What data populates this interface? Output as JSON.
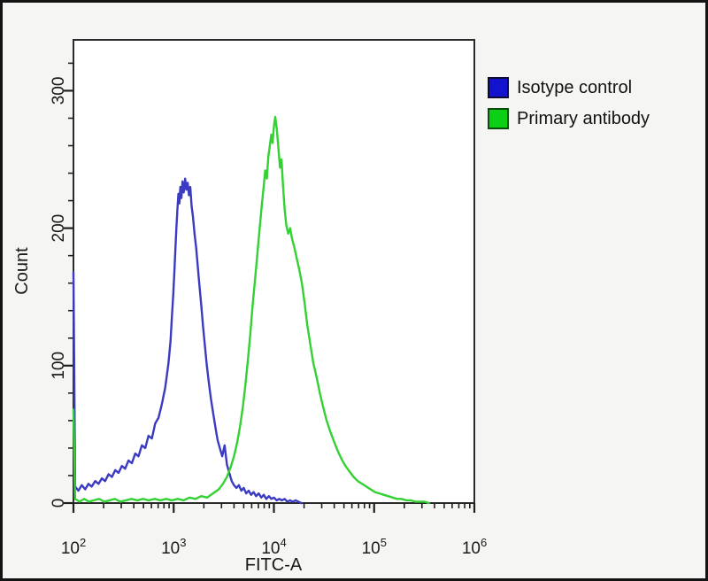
{
  "figure": {
    "background": "#f5f5f3",
    "frame_color": "#141414"
  },
  "chart_data": {
    "type": "line",
    "subtype": "flow-cytometry-histogram-overlay",
    "title": "",
    "xlabel": "FITC-A",
    "ylabel": "Count",
    "x_scale": "log",
    "xlim": [
      100,
      1000000
    ],
    "x_log_range": [
      2,
      6
    ],
    "ylim": [
      0,
      337
    ],
    "grid": false,
    "axis_color": "#1f1f1f",
    "plot_background": "#ffffff",
    "legend_position": "top-right-outside",
    "x_ticks": [
      {
        "mantissa": "10",
        "exp": "2",
        "value": 100
      },
      {
        "mantissa": "10",
        "exp": "3",
        "value": 1000
      },
      {
        "mantissa": "10",
        "exp": "4",
        "value": 10000
      },
      {
        "mantissa": "10",
        "exp": "5",
        "value": 100000
      },
      {
        "mantissa": "10",
        "exp": "6",
        "value": 1000000
      }
    ],
    "y_ticks": [
      0,
      100,
      200,
      300
    ],
    "y_minor_step": 20,
    "series": [
      {
        "name": "Isotype control",
        "color": "#3a3ac2",
        "legend_color": "#1313cf",
        "legend_border": "#0b0b33",
        "points": [
          [
            100,
            168
          ],
          [
            104,
            12
          ],
          [
            112,
            9
          ],
          [
            121,
            13
          ],
          [
            131,
            10
          ],
          [
            141,
            14
          ],
          [
            152,
            12
          ],
          [
            165,
            16
          ],
          [
            178,
            14
          ],
          [
            192,
            18
          ],
          [
            207,
            16
          ],
          [
            224,
            21
          ],
          [
            242,
            19
          ],
          [
            261,
            24
          ],
          [
            282,
            22
          ],
          [
            304,
            27
          ],
          [
            328,
            25
          ],
          [
            354,
            31
          ],
          [
            383,
            29
          ],
          [
            413,
            36
          ],
          [
            446,
            34
          ],
          [
            481,
            42
          ],
          [
            520,
            40
          ],
          [
            561,
            49
          ],
          [
            606,
            47
          ],
          [
            654,
            58
          ],
          [
            706,
            62
          ],
          [
            762,
            72
          ],
          [
            823,
            84
          ],
          [
            888,
            102
          ],
          [
            930,
            118
          ],
          [
            960,
            135
          ],
          [
            990,
            152
          ],
          [
            1015,
            168
          ],
          [
            1040,
            185
          ],
          [
            1065,
            200
          ],
          [
            1090,
            214
          ],
          [
            1115,
            225
          ],
          [
            1140,
            218
          ],
          [
            1165,
            230
          ],
          [
            1195,
            222
          ],
          [
            1225,
            234
          ],
          [
            1260,
            226
          ],
          [
            1300,
            236
          ],
          [
            1340,
            228
          ],
          [
            1380,
            233
          ],
          [
            1420,
            224
          ],
          [
            1465,
            230
          ],
          [
            1510,
            216
          ],
          [
            1560,
            208
          ],
          [
            1615,
            196
          ],
          [
            1675,
            186
          ],
          [
            1740,
            172
          ],
          [
            1810,
            158
          ],
          [
            1885,
            144
          ],
          [
            1965,
            128
          ],
          [
            2050,
            114
          ],
          [
            2140,
            100
          ],
          [
            2240,
            88
          ],
          [
            2350,
            76
          ],
          [
            2470,
            66
          ],
          [
            2600,
            56
          ],
          [
            2740,
            46
          ],
          [
            2890,
            40
          ],
          [
            3050,
            34
          ],
          [
            3220,
            42
          ],
          [
            3400,
            28
          ],
          [
            3590,
            22
          ],
          [
            3790,
            16
          ],
          [
            4000,
            13
          ],
          [
            4230,
            11
          ],
          [
            4470,
            13
          ],
          [
            4730,
            9
          ],
          [
            5000,
            11
          ],
          [
            5290,
            7
          ],
          [
            5600,
            9
          ],
          [
            5930,
            6
          ],
          [
            6280,
            8
          ],
          [
            6650,
            5
          ],
          [
            7050,
            7
          ],
          [
            7470,
            4
          ],
          [
            7920,
            6
          ],
          [
            8400,
            3
          ],
          [
            8910,
            5
          ],
          [
            9450,
            3
          ],
          [
            10030,
            4
          ],
          [
            10650,
            2
          ],
          [
            11310,
            3
          ],
          [
            12020,
            2
          ],
          [
            12780,
            3
          ],
          [
            13600,
            1
          ],
          [
            14480,
            2
          ],
          [
            15430,
            1
          ],
          [
            16460,
            2
          ],
          [
            17570,
            1
          ],
          [
            18780,
            0
          ]
        ]
      },
      {
        "name": "Primary antibody",
        "color": "#33d133",
        "legend_color": "#0cd016",
        "legend_border": "#0a4d0a",
        "points": [
          [
            100,
            68
          ],
          [
            104,
            3
          ],
          [
            115,
            1
          ],
          [
            128,
            3
          ],
          [
            143,
            1
          ],
          [
            160,
            2
          ],
          [
            180,
            3
          ],
          [
            203,
            1
          ],
          [
            229,
            2
          ],
          [
            259,
            3
          ],
          [
            294,
            1
          ],
          [
            334,
            2
          ],
          [
            380,
            3
          ],
          [
            433,
            2
          ],
          [
            494,
            3
          ],
          [
            564,
            2
          ],
          [
            644,
            3
          ],
          [
            736,
            2
          ],
          [
            841,
            3
          ],
          [
            962,
            2
          ],
          [
            1100,
            3
          ],
          [
            1258,
            2
          ],
          [
            1439,
            4
          ],
          [
            1646,
            3
          ],
          [
            1883,
            5
          ],
          [
            2154,
            4
          ],
          [
            2464,
            7
          ],
          [
            2819,
            10
          ],
          [
            3100,
            14
          ],
          [
            3400,
            19
          ],
          [
            3700,
            26
          ],
          [
            4000,
            34
          ],
          [
            4300,
            44
          ],
          [
            4600,
            56
          ],
          [
            4900,
            70
          ],
          [
            5200,
            86
          ],
          [
            5500,
            104
          ],
          [
            5800,
            122
          ],
          [
            6100,
            142
          ],
          [
            6400,
            158
          ],
          [
            6700,
            174
          ],
          [
            7000,
            190
          ],
          [
            7300,
            204
          ],
          [
            7600,
            218
          ],
          [
            7900,
            230
          ],
          [
            8200,
            242
          ],
          [
            8500,
            236
          ],
          [
            8800,
            252
          ],
          [
            9100,
            260
          ],
          [
            9400,
            268
          ],
          [
            9700,
            262
          ],
          [
            10000,
            274
          ],
          [
            10300,
            281
          ],
          [
            10700,
            272
          ],
          [
            11100,
            258
          ],
          [
            11500,
            244
          ],
          [
            11900,
            250
          ],
          [
            12300,
            232
          ],
          [
            12800,
            214
          ],
          [
            13300,
            202
          ],
          [
            13900,
            196
          ],
          [
            14500,
            200
          ],
          [
            15200,
            192
          ],
          [
            16000,
            186
          ],
          [
            16900,
            178
          ],
          [
            17900,
            170
          ],
          [
            19000,
            160
          ],
          [
            20200,
            146
          ],
          [
            21500,
            130
          ],
          [
            23000,
            116
          ],
          [
            24700,
            102
          ],
          [
            26600,
            92
          ],
          [
            28700,
            80
          ],
          [
            31000,
            70
          ],
          [
            33600,
            60
          ],
          [
            36500,
            52
          ],
          [
            39700,
            45
          ],
          [
            43300,
            38
          ],
          [
            47300,
            32
          ],
          [
            51800,
            27
          ],
          [
            56800,
            23
          ],
          [
            62400,
            19
          ],
          [
            68700,
            16
          ],
          [
            75700,
            14
          ],
          [
            83500,
            12
          ],
          [
            92200,
            10
          ],
          [
            101900,
            8
          ],
          [
            112700,
            7
          ],
          [
            124700,
            6
          ],
          [
            138100,
            5
          ],
          [
            153000,
            4
          ],
          [
            169600,
            3
          ],
          [
            188100,
            3
          ],
          [
            208700,
            2
          ],
          [
            231600,
            2
          ],
          [
            257100,
            1
          ],
          [
            285500,
            1
          ],
          [
            317200,
            1
          ],
          [
            352300,
            0
          ]
        ]
      }
    ]
  }
}
